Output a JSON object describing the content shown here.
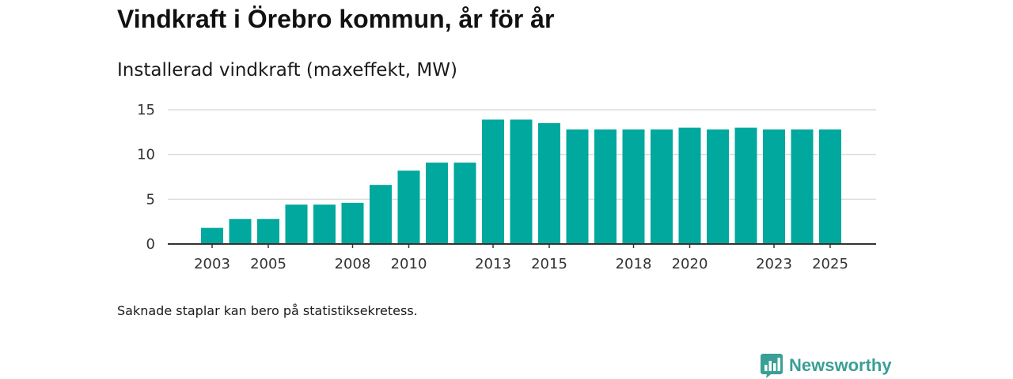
{
  "colors": {
    "bar": "#00a89d",
    "grid": "#dddddd",
    "axis": "#333333",
    "brand": "#3a9f95"
  },
  "chart_data": {
    "type": "bar",
    "title": "Vindkraft i Örebro kommun, år för år",
    "subtitle": "Installerad vindkraft (maxeffekt, MW)",
    "xlabel": "",
    "ylabel": "",
    "categories": [
      2003,
      2004,
      2005,
      2006,
      2007,
      2008,
      2009,
      2010,
      2011,
      2012,
      2013,
      2014,
      2015,
      2016,
      2017,
      2018,
      2019,
      2020,
      2021,
      2022,
      2023,
      2024,
      2025
    ],
    "values": [
      1.8,
      2.8,
      2.8,
      4.4,
      4.4,
      4.6,
      6.6,
      8.2,
      9.1,
      9.1,
      13.9,
      13.9,
      13.5,
      12.8,
      12.8,
      12.8,
      12.8,
      13.0,
      12.8,
      13.0,
      12.8,
      12.8,
      12.8
    ],
    "ylim": [
      0,
      15
    ],
    "yticks": [
      0,
      5,
      10,
      15
    ],
    "xtick_labels": [
      "2003",
      "2005",
      "2008",
      "2010",
      "2013",
      "2015",
      "2018",
      "2020",
      "2023",
      "2025"
    ],
    "grid": true,
    "legend": "none"
  },
  "footnote": "Saknade staplar kan bero på statistiksekretess.",
  "brand": {
    "name": "Newsworthy",
    "logo_icon": "newsworthy-logo-icon"
  }
}
